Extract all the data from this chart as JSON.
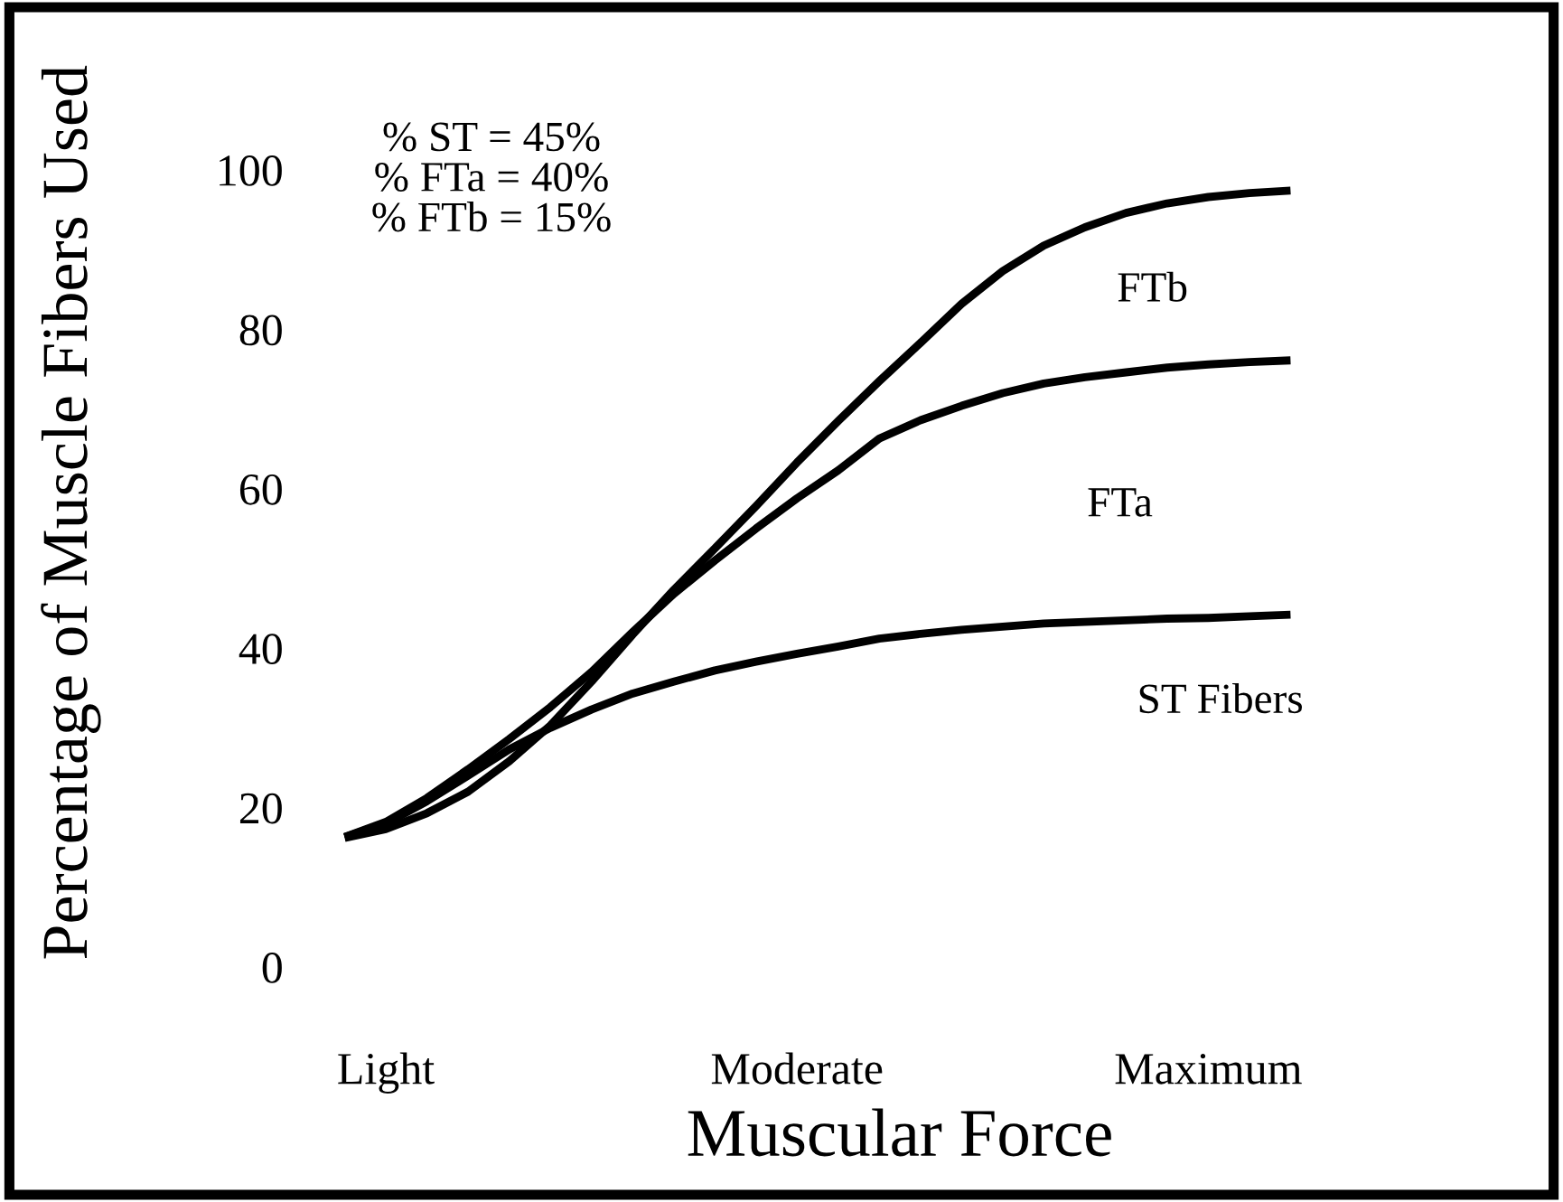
{
  "chart_data": {
    "type": "line",
    "xlabel": "Muscular Force",
    "ylabel": "Percentage of Muscle Fibers Used",
    "categories": [
      null,
      "Light",
      null,
      null,
      null,
      null,
      null,
      null,
      null,
      null,
      null,
      "Moderate",
      null,
      null,
      null,
      null,
      null,
      null,
      null,
      null,
      null,
      "Maximum",
      null,
      null
    ],
    "ylim": [
      0,
      100
    ],
    "yticks": [
      0,
      20,
      40,
      60,
      80,
      100
    ],
    "series": [
      {
        "name": "FTb",
        "color": "#000000",
        "values": [
          16.2,
          17.3,
          19.3,
          22,
          25.8,
          30.3,
          35.8,
          41.7,
          47.3,
          52.5,
          57.8,
          63.3,
          68.5,
          73.5,
          78.3,
          83.2,
          87.3,
          90.5,
          92.8,
          94.6,
          95.8,
          96.6,
          97.1,
          97.4
        ]
      },
      {
        "name": "FTa",
        "color": "#000000",
        "values": [
          16.3,
          18.2,
          21.2,
          24.8,
          28.6,
          32.6,
          37,
          42,
          46.8,
          51,
          55,
          58.8,
          62.3,
          66.3,
          68.6,
          70.4,
          72,
          73.2,
          74,
          74.6,
          75.2,
          75.6,
          75.9,
          76.1
        ]
      },
      {
        "name": "ST Fibers",
        "color": "#000000",
        "values": [
          16.3,
          18,
          20.8,
          24,
          27.3,
          30,
          32.3,
          34.3,
          35.8,
          37.2,
          38.3,
          39.3,
          40.2,
          41.2,
          41.8,
          42.3,
          42.7,
          43.1,
          43.3,
          43.5,
          43.7,
          43.8,
          44,
          44.2
        ]
      }
    ],
    "annotations": [
      "% ST = 45%\n% FTa = 40%\n% FTb = 15%"
    ],
    "grid": false,
    "legend": false,
    "marker": "none",
    "line_style": "solid"
  }
}
